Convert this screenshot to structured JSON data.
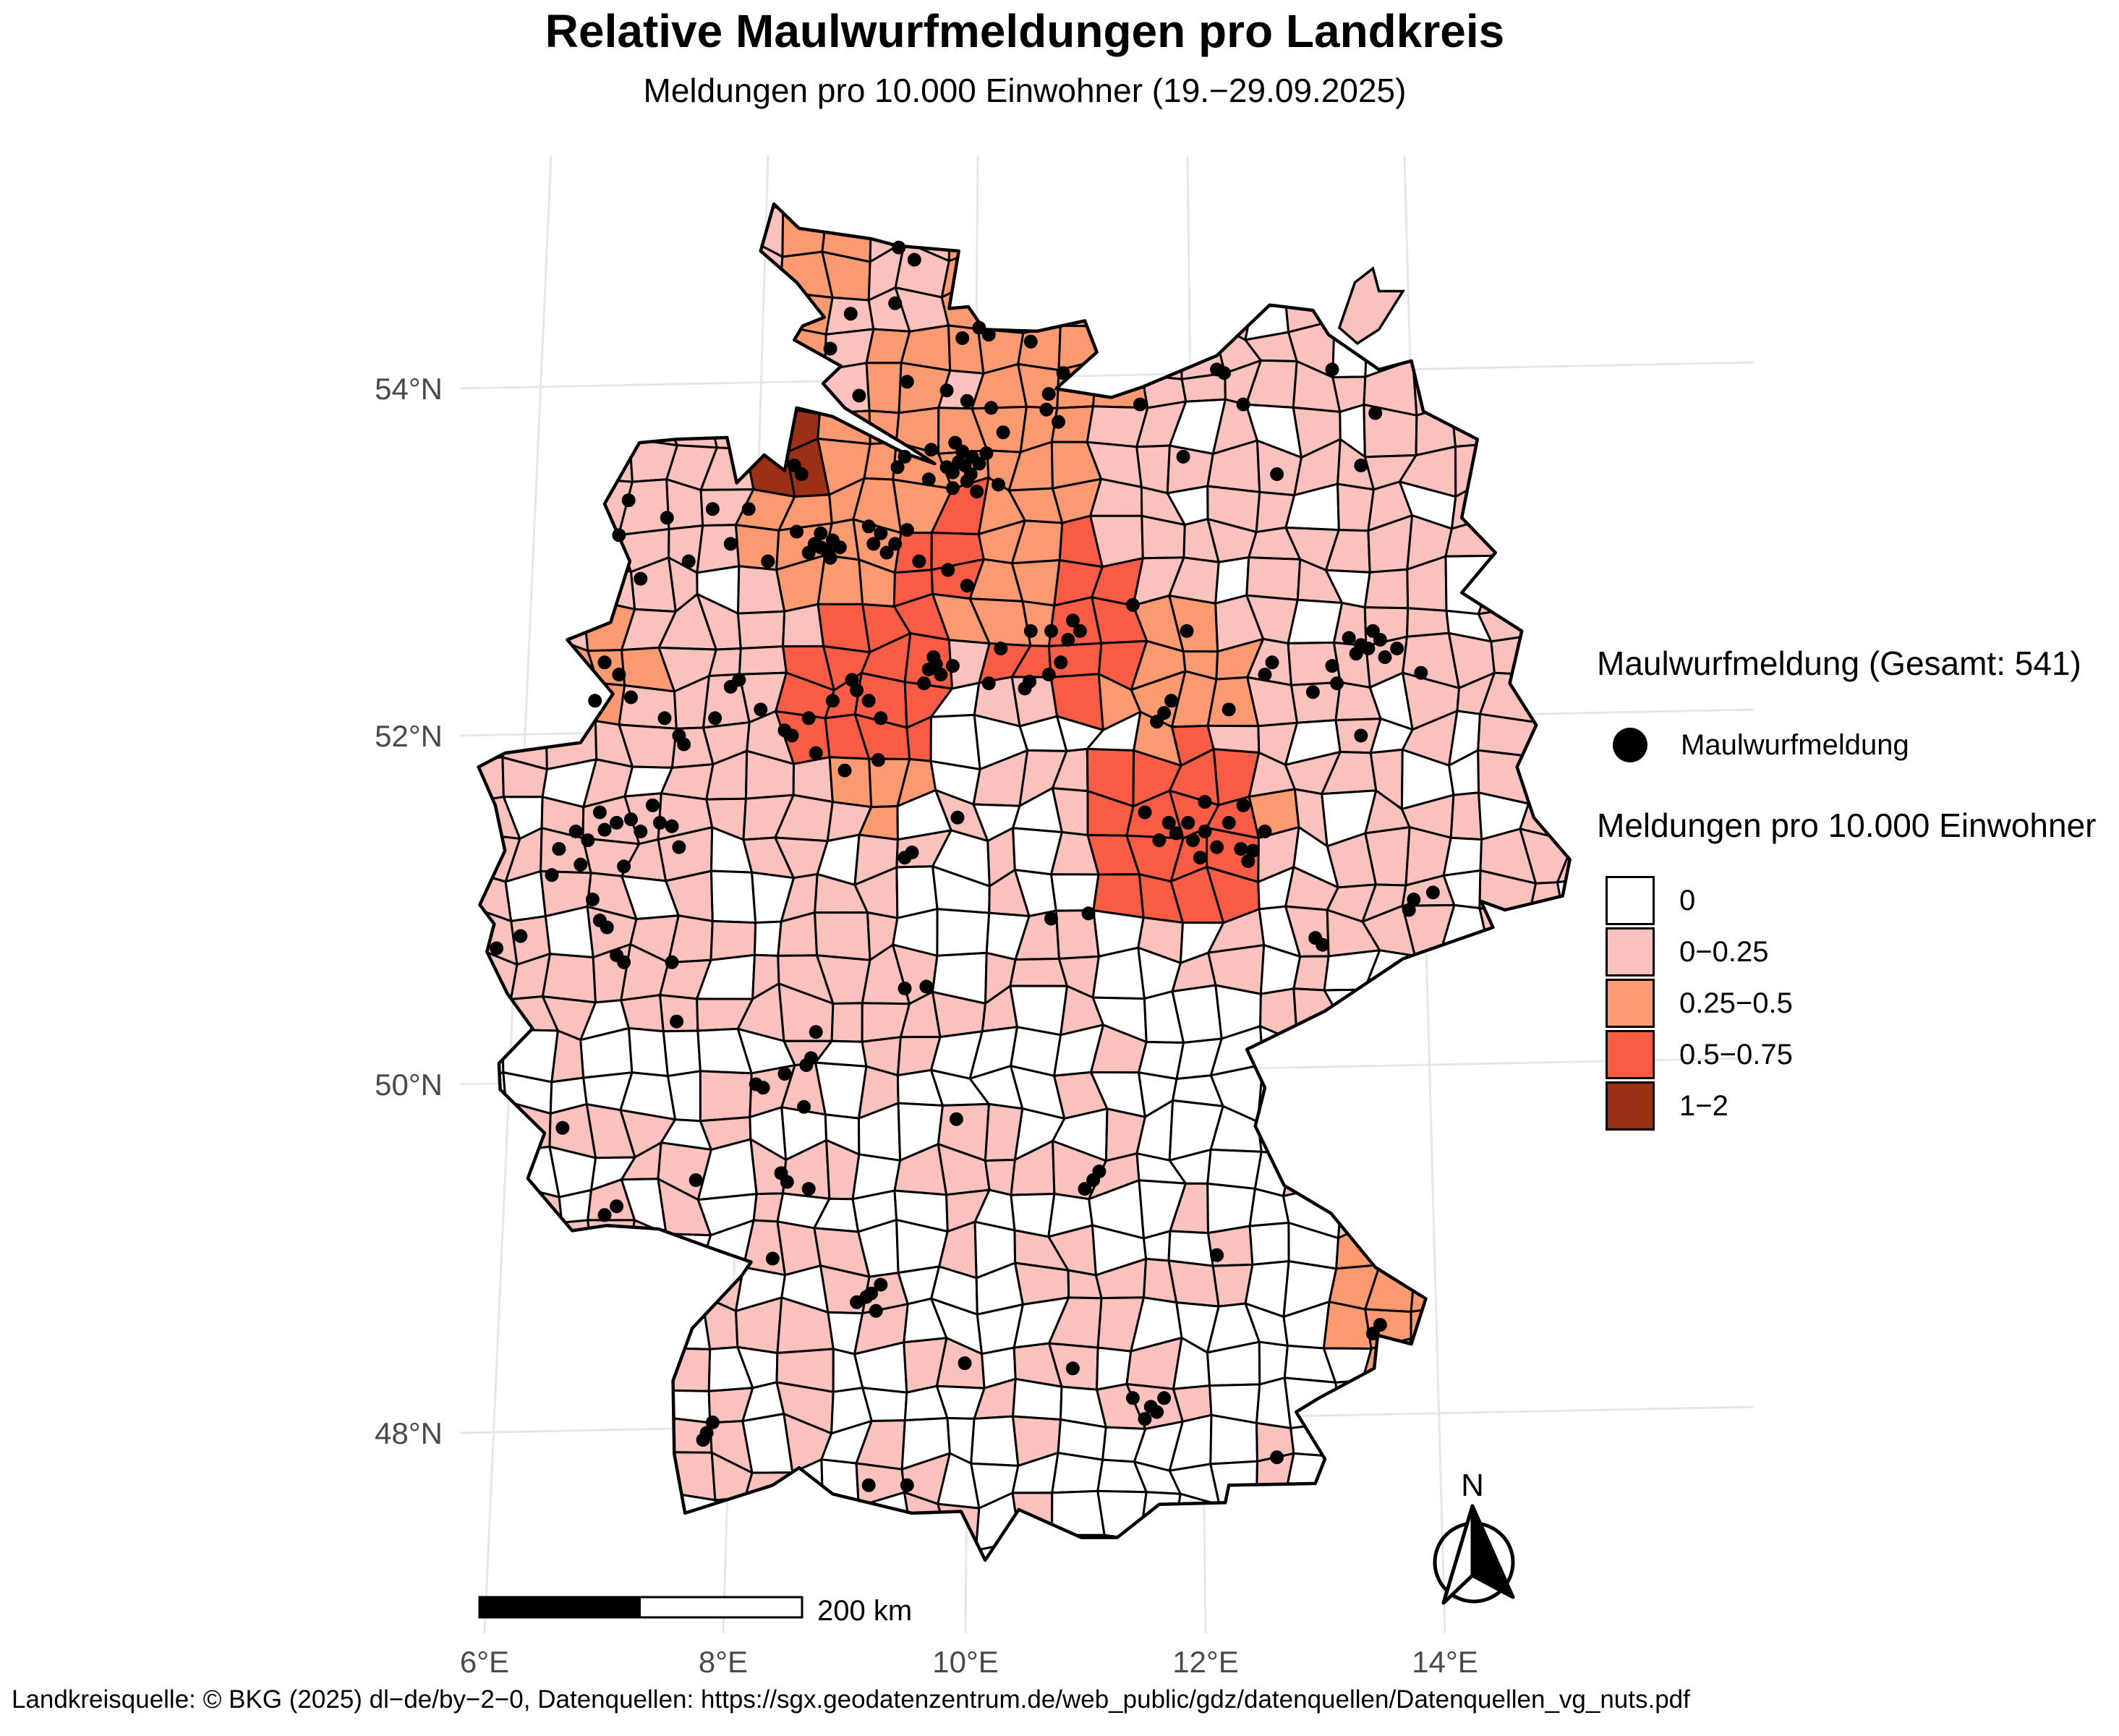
{
  "title": "Relative Maulwurfmeldungen pro Landkreis",
  "subtitle": "Meldungen pro 10.000 Einwohner (19.−29.09.2025)",
  "footer": "Landkreisquelle: © BKG (2025) dl−de/by−2−0, Datenquellen: https://sgx.geodatenzentrum.de/web_public/gdz/datenquellen/Datenquellen_vg_nuts.pdf",
  "legend_points": {
    "title": "Maulwurfmeldung (Gesamt: 541)",
    "item": "Maulwurfmeldung",
    "total": 541,
    "dot_color": "#000000"
  },
  "legend_choropleth": {
    "title": "Meldungen pro 10.000 Einwohner",
    "classes": [
      {
        "label": "0",
        "color": "#FFFFFF"
      },
      {
        "label": "0−0.25",
        "color": "#FBC1BD"
      },
      {
        "label": "0.25−0.5",
        "color": "#FB9A70"
      },
      {
        "label": "0.5−0.75",
        "color": "#F95C44"
      },
      {
        "label": "1−2",
        "color": "#9C3014"
      }
    ]
  },
  "map": {
    "x_ticks": [
      "6°E",
      "8°E",
      "10°E",
      "12°E",
      "14°E"
    ],
    "y_ticks": [
      "54°N",
      "52°N",
      "50°N",
      "48°N"
    ],
    "scalebar_label": "200 km",
    "north_label": "N",
    "tick_color": "#4a4a4a",
    "grid_color": "#E7E7E7",
    "border_color": "#000000"
  },
  "hotspots": [
    {
      "lon": 8.58,
      "lat": 53.55,
      "cls": 4,
      "r": 28
    },
    {
      "lon": 8.85,
      "lat": 53.08,
      "cls": 2,
      "r": 52
    },
    {
      "lon": 9.45,
      "lat": 53.68,
      "cls": 2,
      "r": 55
    },
    {
      "lon": 9.35,
      "lat": 53.12,
      "cls": 3,
      "r": 72
    },
    {
      "lon": 10.3,
      "lat": 52.95,
      "cls": 2,
      "r": 52
    },
    {
      "lon": 10.9,
      "lat": 52.65,
      "cls": 3,
      "r": 62
    },
    {
      "lon": 10.45,
      "lat": 52.82,
      "cls": 2,
      "r": 48
    },
    {
      "lon": 11.2,
      "lat": 52.5,
      "cls": 2,
      "r": 45
    },
    {
      "lon": 9.2,
      "lat": 52.2,
      "cls": 3,
      "r": 55
    },
    {
      "lon": 9.27,
      "lat": 51.85,
      "cls": 2,
      "r": 45
    },
    {
      "lon": 11.75,
      "lat": 51.45,
      "cls": 3,
      "r": 68
    },
    {
      "lon": 12.15,
      "lat": 51.55,
      "cls": 2,
      "r": 45
    },
    {
      "lon": 11.9,
      "lat": 52.3,
      "cls": 2,
      "r": 50
    },
    {
      "lon": 13.45,
      "lat": 48.75,
      "cls": 2,
      "r": 46
    },
    {
      "lon": 7.0,
      "lat": 52.4,
      "cls": 2,
      "r": 38
    },
    {
      "lon": 10.6,
      "lat": 53.5,
      "cls": 2,
      "r": 40
    }
  ],
  "dots": [
    [
      9.45,
      54.8
    ],
    [
      9.58,
      54.73
    ],
    [
      10.12,
      54.34
    ],
    [
      10.2,
      54.3
    ],
    [
      9.98,
      54.28
    ],
    [
      10.55,
      54.26
    ],
    [
      10.82,
      54.08
    ],
    [
      10.7,
      53.96
    ],
    [
      10.68,
      53.87
    ],
    [
      10.78,
      53.8
    ],
    [
      9.42,
      54.48
    ],
    [
      9.05,
      54.42
    ],
    [
      8.88,
      54.22
    ],
    [
      9.12,
      53.95
    ],
    [
      9.52,
      54.03
    ],
    [
      9.85,
      53.98
    ],
    [
      10.02,
      53.92
    ],
    [
      10.22,
      53.88
    ],
    [
      10.32,
      53.74
    ],
    [
      9.72,
      53.64
    ],
    [
      9.92,
      53.68
    ],
    [
      9.95,
      53.57
    ],
    [
      10.0,
      53.55
    ],
    [
      10.06,
      53.6
    ],
    [
      10.05,
      53.5
    ],
    [
      9.9,
      53.51
    ],
    [
      10.12,
      53.56
    ],
    [
      9.98,
      53.63
    ],
    [
      10.18,
      53.62
    ],
    [
      9.85,
      53.54
    ],
    [
      10.02,
      53.46
    ],
    [
      9.5,
      53.6
    ],
    [
      9.44,
      53.54
    ],
    [
      9.7,
      53.47
    ],
    [
      9.9,
      53.42
    ],
    [
      10.1,
      53.4
    ],
    [
      10.28,
      53.44
    ],
    [
      9.2,
      53.2
    ],
    [
      9.3,
      53.16
    ],
    [
      9.42,
      53.1
    ],
    [
      9.52,
      53.18
    ],
    [
      9.35,
      53.05
    ],
    [
      9.24,
      53.1
    ],
    [
      9.62,
      53.0
    ],
    [
      9.86,
      52.95
    ],
    [
      10.02,
      52.86
    ],
    [
      8.75,
      53.1
    ],
    [
      8.8,
      53.08
    ],
    [
      8.86,
      53.05
    ],
    [
      8.9,
      53.12
    ],
    [
      8.8,
      53.16
    ],
    [
      8.7,
      53.05
    ],
    [
      8.88,
      53.02
    ],
    [
      8.96,
      53.08
    ],
    [
      8.6,
      53.17
    ],
    [
      8.58,
      53.55
    ],
    [
      8.64,
      53.5
    ],
    [
      7.2,
      53.35
    ],
    [
      7.52,
      53.25
    ],
    [
      7.9,
      53.3
    ],
    [
      8.2,
      53.3
    ],
    [
      7.12,
      53.15
    ],
    [
      7.3,
      52.9
    ],
    [
      7.7,
      53.0
    ],
    [
      8.05,
      53.1
    ],
    [
      8.36,
      53.0
    ],
    [
      7.0,
      52.42
    ],
    [
      7.12,
      52.35
    ],
    [
      8.05,
      52.28
    ],
    [
      8.12,
      52.32
    ],
    [
      7.62,
      52.0
    ],
    [
      7.66,
      51.95
    ],
    [
      7.5,
      52.1
    ],
    [
      7.92,
      52.1
    ],
    [
      8.3,
      52.15
    ],
    [
      6.92,
      52.2
    ],
    [
      7.22,
      52.22
    ],
    [
      8.5,
      52.03
    ],
    [
      8.56,
      52.0
    ],
    [
      8.7,
      52.1
    ],
    [
      8.9,
      52.2
    ],
    [
      8.76,
      51.9
    ],
    [
      9.0,
      51.8
    ],
    [
      9.28,
      51.86
    ],
    [
      9.7,
      52.38
    ],
    [
      9.76,
      52.41
    ],
    [
      9.8,
      52.35
    ],
    [
      9.66,
      52.3
    ],
    [
      9.74,
      52.45
    ],
    [
      9.9,
      52.4
    ],
    [
      10.2,
      52.3
    ],
    [
      10.5,
      52.27
    ],
    [
      10.54,
      52.31
    ],
    [
      10.8,
      52.42
    ],
    [
      10.7,
      52.35
    ],
    [
      10.3,
      52.5
    ],
    [
      10.55,
      52.6
    ],
    [
      10.72,
      52.6
    ],
    [
      10.9,
      52.66
    ],
    [
      10.96,
      52.6
    ],
    [
      10.86,
      52.55
    ],
    [
      9.2,
      52.2
    ],
    [
      9.1,
      52.26
    ],
    [
      9.3,
      52.1
    ],
    [
      9.06,
      52.32
    ],
    [
      11.4,
      52.75
    ],
    [
      11.85,
      52.6
    ],
    [
      11.66,
      52.13
    ],
    [
      11.6,
      52.08
    ],
    [
      11.72,
      52.2
    ],
    [
      12.2,
      52.15
    ],
    [
      12.5,
      52.35
    ],
    [
      12.56,
      52.42
    ],
    [
      11.46,
      53.9
    ],
    [
      12.1,
      54.1
    ],
    [
      12.16,
      54.08
    ],
    [
      12.32,
      53.9
    ],
    [
      13.06,
      54.1
    ],
    [
      13.42,
      53.85
    ],
    [
      13.3,
      53.55
    ],
    [
      12.6,
      53.5
    ],
    [
      11.82,
      53.6
    ],
    [
      13.3,
      52.52
    ],
    [
      13.36,
      52.5
    ],
    [
      13.46,
      52.55
    ],
    [
      13.26,
      52.47
    ],
    [
      13.5,
      52.45
    ],
    [
      13.4,
      52.6
    ],
    [
      13.2,
      52.56
    ],
    [
      13.6,
      52.5
    ],
    [
      13.06,
      52.4
    ],
    [
      12.9,
      52.25
    ],
    [
      13.1,
      52.3
    ],
    [
      13.8,
      52.36
    ],
    [
      13.3,
      52.0
    ],
    [
      11.7,
      51.5
    ],
    [
      11.76,
      51.44
    ],
    [
      11.86,
      51.5
    ],
    [
      11.9,
      51.4
    ],
    [
      11.62,
      51.4
    ],
    [
      12.0,
      51.45
    ],
    [
      12.1,
      51.36
    ],
    [
      11.96,
      51.3
    ],
    [
      12.3,
      51.35
    ],
    [
      12.4,
      51.34
    ],
    [
      12.36,
      51.28
    ],
    [
      12.2,
      51.5
    ],
    [
      12.5,
      51.45
    ],
    [
      11.5,
      51.56
    ],
    [
      12.0,
      51.62
    ],
    [
      12.32,
      51.6
    ],
    [
      11.03,
      50.98
    ],
    [
      10.72,
      50.95
    ],
    [
      9.94,
      51.53
    ],
    [
      12.92,
      50.84
    ],
    [
      13.74,
      51.06
    ],
    [
      13.7,
      51.0
    ],
    [
      13.9,
      51.1
    ],
    [
      12.98,
      50.8
    ],
    [
      6.76,
      51.45
    ],
    [
      6.86,
      51.4
    ],
    [
      7.0,
      51.46
    ],
    [
      7.1,
      51.5
    ],
    [
      7.22,
      51.52
    ],
    [
      7.46,
      51.5
    ],
    [
      6.62,
      51.35
    ],
    [
      6.96,
      51.56
    ],
    [
      7.3,
      51.45
    ],
    [
      7.56,
      51.48
    ],
    [
      6.56,
      51.2
    ],
    [
      6.8,
      51.26
    ],
    [
      7.16,
      51.25
    ],
    [
      7.62,
      51.36
    ],
    [
      7.4,
      51.6
    ],
    [
      6.96,
      50.94
    ],
    [
      7.02,
      50.9
    ],
    [
      7.1,
      50.74
    ],
    [
      7.16,
      50.7
    ],
    [
      6.1,
      50.78
    ],
    [
      6.3,
      50.85
    ],
    [
      6.9,
      51.06
    ],
    [
      7.56,
      50.7
    ],
    [
      8.68,
      50.11
    ],
    [
      8.72,
      50.15
    ],
    [
      8.5,
      50.06
    ],
    [
      8.26,
      50.0
    ],
    [
      8.32,
      49.98
    ],
    [
      8.66,
      49.87
    ],
    [
      8.76,
      50.3
    ],
    [
      9.5,
      50.55
    ],
    [
      9.68,
      50.56
    ],
    [
      9.5,
      51.3
    ],
    [
      9.56,
      51.33
    ],
    [
      7.0,
      49.25
    ],
    [
      7.1,
      49.3
    ],
    [
      7.76,
      49.45
    ],
    [
      6.65,
      49.75
    ],
    [
      7.6,
      50.36
    ],
    [
      8.4,
      49.0
    ],
    [
      8.47,
      49.49
    ],
    [
      8.52,
      49.44
    ],
    [
      8.7,
      49.4
    ],
    [
      9.18,
      48.78
    ],
    [
      9.22,
      48.8
    ],
    [
      9.1,
      48.75
    ],
    [
      9.3,
      48.85
    ],
    [
      9.26,
      48.7
    ],
    [
      7.85,
      48.0
    ],
    [
      7.9,
      48.06
    ],
    [
      7.82,
      47.96
    ],
    [
      9.2,
      47.7
    ],
    [
      9.52,
      47.7
    ],
    [
      10.0,
      48.4
    ],
    [
      11.07,
      49.45
    ],
    [
      11.12,
      49.5
    ],
    [
      11.0,
      49.4
    ],
    [
      9.93,
      49.8
    ],
    [
      10.9,
      48.37
    ],
    [
      11.55,
      48.15
    ],
    [
      11.6,
      48.12
    ],
    [
      11.5,
      48.08
    ],
    [
      11.66,
      48.2
    ],
    [
      11.4,
      48.2
    ],
    [
      12.1,
      49.02
    ],
    [
      13.4,
      48.57
    ],
    [
      13.46,
      48.62
    ],
    [
      12.6,
      47.86
    ]
  ]
}
